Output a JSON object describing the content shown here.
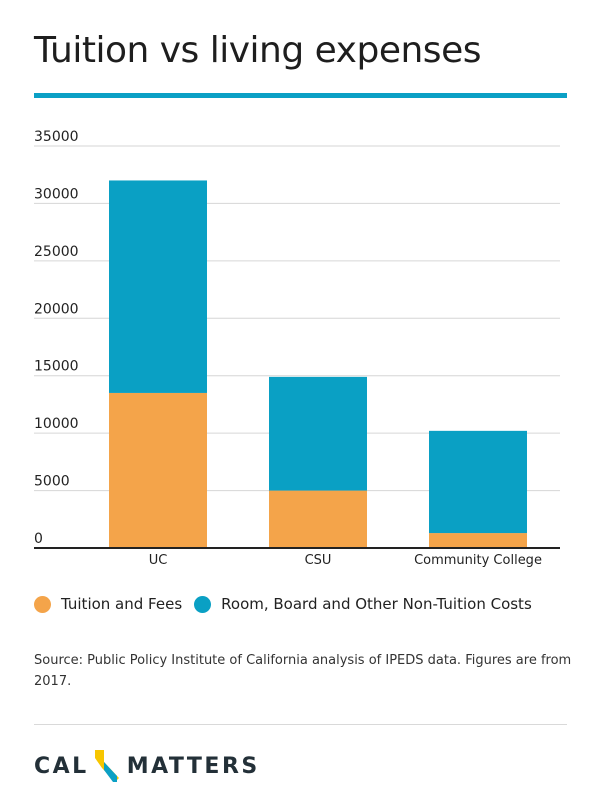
{
  "title": "Tuition vs living expenses",
  "colors": {
    "accent": "#0ba0c5",
    "tuition": "#f4a44a",
    "room_board": "#0aa0c4",
    "logo_text": "#233038",
    "logo_yellow": "#f7c600",
    "logo_blue": "#0ba0c5"
  },
  "chart_data": {
    "type": "bar",
    "stacked": true,
    "categories": [
      "UC",
      "CSU",
      "Community College"
    ],
    "series": [
      {
        "name": "Tuition and Fees",
        "values": [
          13500,
          5000,
          1300
        ]
      },
      {
        "name": "Room, Board and Other Non-Tuition Costs",
        "values": [
          18500,
          9900,
          8900
        ]
      }
    ],
    "yticks": [
      "0",
      "5000",
      "10000",
      "15000",
      "20000",
      "25000",
      "30000",
      "35000"
    ],
    "ylim": [
      0,
      35000
    ],
    "grid": true,
    "legend_position": "bottom"
  },
  "legend": [
    {
      "label": "Tuition and Fees",
      "icon": "circle-icon"
    },
    {
      "label": "Room, Board and Other Non-Tuition Costs",
      "icon": "circle-icon"
    }
  ],
  "source": "Source: Public Policy Institute of California analysis of IPEDS data. Figures are from 2017.",
  "logo": {
    "left": "CAL",
    "right": "MATTERS"
  }
}
